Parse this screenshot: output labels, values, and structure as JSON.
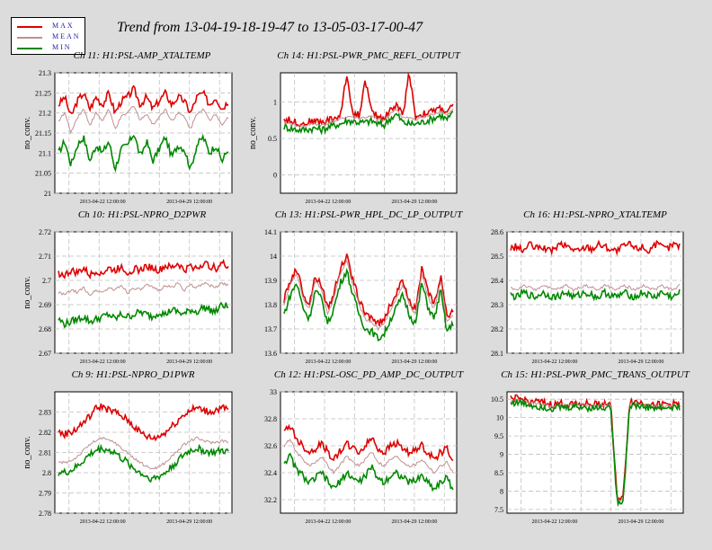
{
  "page": {
    "title": "Trend from 13-04-19-18-19-47 to 13-05-03-17-00-47"
  },
  "legend": [
    {
      "label": "MAX",
      "color": "#dd0000"
    },
    {
      "label": "MEAN",
      "color": "#c09090"
    },
    {
      "label": "MIN",
      "color": "#008800"
    }
  ],
  "chart_data": [
    {
      "type": "line",
      "title": "Ch 11: H1:PSL-AMP_XTALTEMP",
      "ylabel": "no_conv.",
      "ylim": [
        21,
        21.3
      ],
      "yticks": [
        21,
        21.05,
        21.1,
        21.15,
        21.2,
        21.25,
        21.3
      ],
      "ytick_labels": [
        "21",
        "21.05",
        "21.1",
        "21.15",
        "21.2",
        "21.25",
        "21.3"
      ],
      "xticks": [
        "2013-04-22 12:00:00",
        "2013-04-29 12:00:00"
      ],
      "grid": true,
      "series": [
        {
          "name": "MAX",
          "values": [
            21.22,
            21.24,
            21.19,
            21.23,
            21.25,
            21.21,
            21.24,
            21.22,
            21.25,
            21.2,
            21.23,
            21.24,
            21.26,
            21.22,
            21.24,
            21.21,
            21.23,
            21.25,
            21.22,
            21.24,
            21.23,
            21.2,
            21.24,
            21.25,
            21.22,
            21.24,
            21.21,
            21.23
          ]
        },
        {
          "name": "MEAN",
          "values": [
            21.18,
            21.2,
            21.15,
            21.19,
            21.21,
            21.17,
            21.2,
            21.18,
            21.21,
            21.16,
            21.19,
            21.2,
            21.22,
            21.18,
            21.2,
            21.17,
            21.19,
            21.21,
            21.18,
            21.2,
            21.19,
            21.16,
            21.2,
            21.21,
            21.18,
            21.2,
            21.17,
            21.19
          ]
        },
        {
          "name": "MIN",
          "values": [
            21.1,
            21.13,
            21.07,
            21.12,
            21.14,
            21.08,
            21.12,
            21.1,
            21.13,
            21.06,
            21.11,
            21.12,
            21.15,
            21.09,
            21.13,
            21.08,
            21.11,
            21.14,
            21.09,
            21.12,
            21.11,
            21.06,
            21.12,
            21.14,
            21.1,
            21.12,
            21.08,
            21.11
          ]
        }
      ]
    },
    {
      "type": "line",
      "title": "Ch 14: H1:PSL-PWR_PMC_REFL_OUTPUT",
      "ylabel": "no_conv.",
      "ylim": [
        -0.25,
        1.4
      ],
      "yticks": [
        0,
        0.5,
        1
      ],
      "ytick_labels": [
        "0",
        "0.5",
        "1"
      ],
      "xticks": [
        "2013-04-22 12:00:00",
        "2013-04-29 12:00:00"
      ],
      "grid": true,
      "series": [
        {
          "name": "MAX",
          "values": [
            0.76,
            0.75,
            0.72,
            0.7,
            0.73,
            0.74,
            0.72,
            0.75,
            0.78,
            0.8,
            1.38,
            0.84,
            0.82,
            1.3,
            0.85,
            0.8,
            0.78,
            0.9,
            0.95,
            0.82,
            1.42,
            0.8,
            0.83,
            0.85,
            0.88,
            0.92,
            0.86,
            0.95
          ]
        },
        {
          "name": "MEAN",
          "values": [
            0.72,
            0.7,
            0.68,
            0.67,
            0.69,
            0.7,
            0.68,
            0.71,
            0.74,
            0.76,
            0.8,
            0.8,
            0.78,
            0.79,
            0.8,
            0.76,
            0.74,
            0.85,
            0.9,
            0.78,
            0.78,
            0.76,
            0.79,
            0.81,
            0.84,
            0.88,
            0.82,
            0.9
          ]
        },
        {
          "name": "MIN",
          "values": [
            0.66,
            0.64,
            0.62,
            0.62,
            0.63,
            0.64,
            0.62,
            0.65,
            0.68,
            0.7,
            0.74,
            0.74,
            0.72,
            0.72,
            0.74,
            0.7,
            0.68,
            0.78,
            0.83,
            0.72,
            0.7,
            0.7,
            0.72,
            0.75,
            0.78,
            0.82,
            0.76,
            0.84
          ]
        }
      ]
    },
    {
      "type": "line",
      "title": "Ch 10: H1:PSL-NPRO_D2PWR",
      "ylabel": "no_conv.",
      "ylim": [
        2.67,
        2.72
      ],
      "yticks": [
        2.67,
        2.68,
        2.69,
        2.7,
        2.71,
        2.72
      ],
      "ytick_labels": [
        "2.67",
        "2.68",
        "2.69",
        "2.7",
        "2.71",
        "2.72"
      ],
      "xticks": [
        "2013-04-22 12:00:00",
        "2013-04-29 12:00:00"
      ],
      "grid": true,
      "series": [
        {
          "name": "MAX",
          "values": [
            2.703,
            2.702,
            2.704,
            2.703,
            2.705,
            2.702,
            2.704,
            2.703,
            2.705,
            2.704,
            2.706,
            2.703,
            2.705,
            2.704,
            2.706,
            2.705,
            2.704,
            2.706,
            2.705,
            2.707,
            2.704,
            2.706,
            2.705,
            2.707,
            2.706,
            2.705,
            2.707,
            2.706
          ]
        },
        {
          "name": "MEAN",
          "values": [
            2.695,
            2.694,
            2.696,
            2.695,
            2.697,
            2.694,
            2.696,
            2.695,
            2.697,
            2.696,
            2.698,
            2.695,
            2.697,
            2.696,
            2.698,
            2.697,
            2.696,
            2.698,
            2.697,
            2.699,
            2.696,
            2.698,
            2.697,
            2.699,
            2.698,
            2.697,
            2.699,
            2.698
          ]
        },
        {
          "name": "MIN",
          "values": [
            2.684,
            2.682,
            2.683,
            2.684,
            2.685,
            2.683,
            2.684,
            2.685,
            2.686,
            2.684,
            2.686,
            2.685,
            2.686,
            2.687,
            2.686,
            2.685,
            2.687,
            2.686,
            2.688,
            2.687,
            2.686,
            2.688,
            2.687,
            2.689,
            2.688,
            2.687,
            2.69,
            2.689
          ]
        }
      ]
    },
    {
      "type": "line",
      "title": "Ch 13: H1:PSL-PWR_HPL_DC_LP_OUTPUT",
      "ylabel": "",
      "ylim": [
        13.6,
        14.1
      ],
      "yticks": [
        13.6,
        13.7,
        13.8,
        13.9,
        14,
        14.1
      ],
      "ytick_labels": [
        "13.6",
        "13.7",
        "13.8",
        "13.9",
        "14",
        "14.1"
      ],
      "xticks": [
        "2013-04-22 12:00:00",
        "2013-04-29 12:00:00"
      ],
      "grid": true,
      "series": [
        {
          "name": "MAX",
          "values": [
            13.82,
            13.9,
            13.95,
            13.85,
            13.8,
            13.92,
            13.88,
            13.78,
            13.85,
            13.95,
            14.0,
            13.9,
            13.82,
            13.76,
            13.75,
            13.72,
            13.74,
            13.8,
            13.85,
            13.9,
            13.82,
            13.78,
            13.95,
            13.85,
            13.8,
            13.92,
            13.75,
            13.78
          ]
        },
        {
          "name": "MEAN",
          "values": [
            13.8,
            13.88,
            13.93,
            13.83,
            13.78,
            13.9,
            13.86,
            13.76,
            13.83,
            13.93,
            13.98,
            13.88,
            13.8,
            13.74,
            13.73,
            13.7,
            13.72,
            13.78,
            13.83,
            13.88,
            13.8,
            13.76,
            13.93,
            13.83,
            13.78,
            13.9,
            13.73,
            13.76
          ]
        },
        {
          "name": "MIN",
          "values": [
            13.76,
            13.84,
            13.89,
            13.79,
            13.74,
            13.86,
            13.82,
            13.72,
            13.79,
            13.89,
            13.94,
            13.84,
            13.76,
            13.7,
            13.69,
            13.66,
            13.68,
            13.74,
            13.79,
            13.84,
            13.76,
            13.72,
            13.89,
            13.79,
            13.74,
            13.86,
            13.69,
            13.72
          ]
        }
      ]
    },
    {
      "type": "line",
      "title": "Ch 16: H1:PSL-NPRO_XTALTEMP",
      "ylabel": "",
      "ylim": [
        28.1,
        28.6
      ],
      "yticks": [
        28.1,
        28.2,
        28.3,
        28.4,
        28.5,
        28.6
      ],
      "ytick_labels": [
        "28.1",
        "28.2",
        "28.3",
        "28.4",
        "28.5",
        "28.6"
      ],
      "xticks": [
        "2013-04-22 12:00:00",
        "2013-04-29 12:00:00"
      ],
      "grid": true,
      "series": [
        {
          "name": "MAX",
          "values": [
            28.53,
            28.54,
            28.52,
            28.55,
            28.53,
            28.54,
            28.52,
            28.53,
            28.55,
            28.54,
            28.53,
            28.52,
            28.54,
            28.53,
            28.55,
            28.54,
            28.53,
            28.52,
            28.54,
            28.55,
            28.53,
            28.54,
            28.52,
            28.55,
            28.54,
            28.53,
            28.55,
            28.54
          ]
        },
        {
          "name": "MEAN",
          "values": [
            28.37,
            28.36,
            28.38,
            28.37,
            28.36,
            28.38,
            28.37,
            28.36,
            28.37,
            28.38,
            28.36,
            28.37,
            28.38,
            28.37,
            28.36,
            28.38,
            28.37,
            28.36,
            28.38,
            28.37,
            28.36,
            28.38,
            28.37,
            28.36,
            28.38,
            28.37,
            28.36,
            28.38
          ]
        },
        {
          "name": "MIN",
          "values": [
            28.34,
            28.33,
            28.35,
            28.34,
            28.33,
            28.35,
            28.34,
            28.33,
            28.34,
            28.35,
            28.33,
            28.34,
            28.35,
            28.34,
            28.33,
            28.35,
            28.34,
            28.33,
            28.35,
            28.34,
            28.33,
            28.35,
            28.34,
            28.33,
            28.35,
            28.34,
            28.33,
            28.35
          ]
        }
      ]
    },
    {
      "type": "line",
      "title": "Ch 9: H1:PSL-NPRO_D1PWR",
      "ylabel": "no_conv.",
      "ylim": [
        2.78,
        2.84
      ],
      "yticks": [
        2.78,
        2.79,
        2.8,
        2.81,
        2.82,
        2.83
      ],
      "ytick_labels": [
        "2.78",
        "2.79",
        "2.8",
        "2.81",
        "2.82",
        "2.83"
      ],
      "xticks": [
        "2013-04-22 12:00:00",
        "2013-04-29 12:00:00"
      ],
      "grid": true,
      "series": [
        {
          "name": "MAX",
          "values": [
            2.82,
            2.819,
            2.82,
            2.822,
            2.825,
            2.828,
            2.832,
            2.833,
            2.831,
            2.83,
            2.828,
            2.826,
            2.823,
            2.82,
            2.818,
            2.817,
            2.818,
            2.82,
            2.823,
            2.826,
            2.829,
            2.831,
            2.832,
            2.831,
            2.83,
            2.831,
            2.832,
            2.831
          ]
        },
        {
          "name": "MEAN",
          "values": [
            2.805,
            2.805,
            2.806,
            2.808,
            2.811,
            2.814,
            2.816,
            2.817,
            2.816,
            2.815,
            2.812,
            2.81,
            2.807,
            2.805,
            2.803,
            2.802,
            2.803,
            2.805,
            2.808,
            2.811,
            2.814,
            2.816,
            2.817,
            2.816,
            2.815,
            2.815,
            2.816,
            2.815
          ]
        },
        {
          "name": "MIN",
          "values": [
            2.8,
            2.8,
            2.801,
            2.803,
            2.806,
            2.809,
            2.811,
            2.812,
            2.811,
            2.81,
            2.807,
            2.805,
            2.802,
            2.8,
            2.798,
            2.797,
            2.798,
            2.8,
            2.803,
            2.806,
            2.809,
            2.811,
            2.812,
            2.811,
            2.81,
            2.81,
            2.811,
            2.81
          ]
        }
      ]
    },
    {
      "type": "line",
      "title": "Ch 12: H1:PSL-OSC_PD_AMP_DC_OUTPUT",
      "ylabel": "",
      "ylim": [
        32.1,
        33.0
      ],
      "yticks": [
        32.2,
        32.4,
        32.6,
        32.8,
        33
      ],
      "ytick_labels": [
        "32.2",
        "32.4",
        "32.6",
        "32.8",
        "33"
      ],
      "xticks": [
        "2013-04-22 12:00:00",
        "2013-04-29 12:00:00"
      ],
      "grid": true,
      "series": [
        {
          "name": "MAX",
          "values": [
            32.7,
            32.75,
            32.65,
            32.6,
            32.55,
            32.58,
            32.62,
            32.55,
            32.5,
            32.56,
            32.62,
            32.58,
            32.55,
            32.6,
            32.66,
            32.58,
            32.55,
            32.6,
            32.62,
            32.58,
            32.55,
            32.56,
            32.6,
            32.55,
            32.5,
            32.55,
            32.58,
            32.5
          ]
        },
        {
          "name": "MEAN",
          "values": [
            32.6,
            32.65,
            32.55,
            32.5,
            32.45,
            32.48,
            32.52,
            32.45,
            32.4,
            32.46,
            32.52,
            32.48,
            32.45,
            32.5,
            32.56,
            32.48,
            32.45,
            32.5,
            32.52,
            32.48,
            32.45,
            32.46,
            32.5,
            32.45,
            32.4,
            32.45,
            32.48,
            32.4
          ]
        },
        {
          "name": "MIN",
          "values": [
            32.48,
            32.52,
            32.42,
            32.38,
            32.32,
            32.36,
            32.4,
            32.33,
            32.28,
            32.34,
            32.4,
            32.36,
            32.33,
            32.38,
            32.44,
            32.36,
            32.33,
            32.38,
            32.4,
            32.36,
            32.33,
            32.34,
            32.38,
            32.33,
            32.28,
            32.33,
            32.36,
            32.28
          ]
        }
      ]
    },
    {
      "type": "line",
      "title": "Ch 15: H1:PSL-PWR_PMC_TRANS_OUTPUT",
      "ylabel": "",
      "ylim": [
        7.4,
        10.7
      ],
      "yticks": [
        7.5,
        8,
        8.5,
        9,
        9.5,
        10,
        10.5
      ],
      "ytick_labels": [
        "7.5",
        "8",
        "8.5",
        "9",
        "9.5",
        "10",
        "10.5"
      ],
      "xticks": [
        "2013-04-22 12:00:00",
        "2013-04-29 12:00:00"
      ],
      "grid": true,
      "series": [
        {
          "name": "MAX",
          "values": [
            10.5,
            10.52,
            10.48,
            10.45,
            10.42,
            10.4,
            10.36,
            10.35,
            10.38,
            10.36,
            10.4,
            10.39,
            10.38,
            10.36,
            10.37,
            10.38,
            10.37,
            7.8,
            7.82,
            10.45,
            10.42,
            10.4,
            10.38,
            10.36,
            10.35,
            10.36,
            10.37,
            10.38
          ]
        },
        {
          "name": "MEAN",
          "values": [
            10.46,
            10.48,
            10.44,
            10.41,
            10.38,
            10.36,
            10.32,
            10.31,
            10.34,
            10.32,
            10.36,
            10.35,
            10.34,
            10.32,
            10.33,
            10.34,
            10.33,
            7.76,
            7.78,
            10.41,
            10.38,
            10.36,
            10.34,
            10.32,
            10.31,
            10.32,
            10.33,
            10.34
          ]
        },
        {
          "name": "MIN",
          "values": [
            10.4,
            10.42,
            10.38,
            10.35,
            10.32,
            10.3,
            10.26,
            10.25,
            10.28,
            10.26,
            10.3,
            10.29,
            10.28,
            10.26,
            10.27,
            10.28,
            10.27,
            7.72,
            7.74,
            10.35,
            10.32,
            10.3,
            10.28,
            10.26,
            10.25,
            10.26,
            10.27,
            10.28
          ]
        }
      ]
    }
  ]
}
